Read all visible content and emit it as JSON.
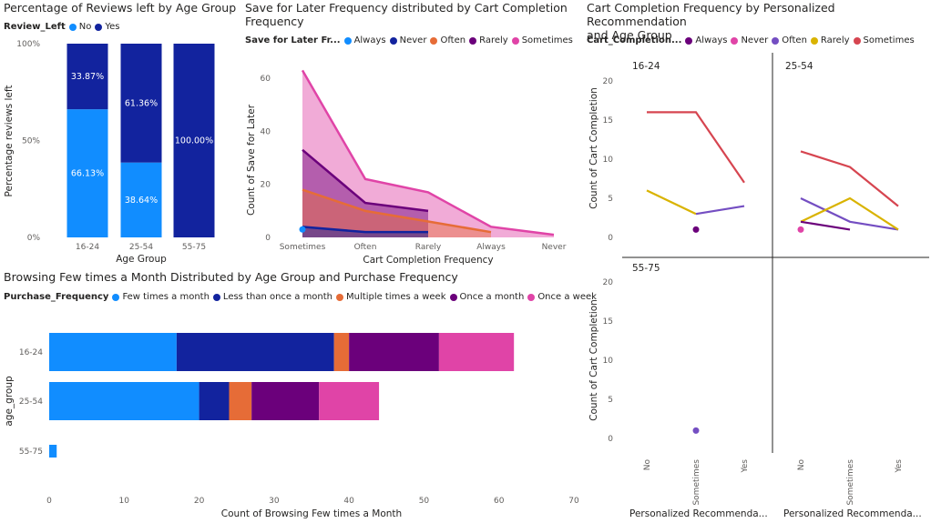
{
  "colors": {
    "c_lightblue": "#118DFF",
    "c_navy": "#12239E",
    "c_orange": "#E66C37",
    "c_purple": "#6B007B",
    "c_pink": "#E044A7",
    "c_lavender": "#744EC2",
    "c_gold": "#D9B300",
    "c_red": "#D64550"
  },
  "chart_data": [
    {
      "id": "reviews",
      "type": "bar",
      "title": "Percentage of Reviews left by Age Group",
      "legend_title": "Review_Left",
      "xlabel": "Age Group",
      "ylabel": "Percentage reviews left",
      "categories": [
        "16-24",
        "25-54",
        "55-75"
      ],
      "yticks": [
        "0%",
        "50%",
        "100%"
      ],
      "ylim": [
        0,
        100
      ],
      "stacked": "100%",
      "series": [
        {
          "name": "No",
          "color": "#118DFF",
          "values": [
            66.13,
            38.64,
            0
          ],
          "labels": [
            "66.13%",
            "38.64%",
            ""
          ]
        },
        {
          "name": "Yes",
          "color": "#12239E",
          "values": [
            33.87,
            61.36,
            100
          ],
          "labels": [
            "33.87%",
            "61.36%",
            "100.00%"
          ]
        }
      ]
    },
    {
      "id": "saveforlater",
      "type": "area",
      "title": "Save for Later Frequency distributed by Cart Completion\nFrequency",
      "legend_title": "Save for Later Fr...",
      "xlabel": "Cart Completion Frequency",
      "ylabel": "Count of Save for Later",
      "categories": [
        "Sometimes",
        "Often",
        "Rarely",
        "Always",
        "Never"
      ],
      "yticks": [
        "0",
        "20",
        "40",
        "60"
      ],
      "ylim": [
        0,
        70
      ],
      "series": [
        {
          "name": "Always",
          "color": "#118DFF",
          "values": [
            3,
            null,
            null,
            null,
            null
          ]
        },
        {
          "name": "Never",
          "color": "#12239E",
          "values": [
            4,
            2,
            2,
            null,
            null
          ]
        },
        {
          "name": "Often",
          "color": "#E66C37",
          "values": [
            18,
            10,
            6,
            2,
            null
          ]
        },
        {
          "name": "Rarely",
          "color": "#6B007B",
          "values": [
            33,
            13,
            10,
            null,
            null
          ]
        },
        {
          "name": "Sometimes",
          "color": "#E044A7",
          "values": [
            63,
            22,
            17,
            4,
            1
          ]
        }
      ]
    },
    {
      "id": "cartcompletion",
      "type": "line",
      "title": "Cart Completion Frequency by Personalized Recommendation\nand Age Group",
      "legend_title": "Cart_Completion...",
      "ylabel": "Count of Cart Completion",
      "xlabel": "Personalized Recommenda...",
      "categories": [
        "No",
        "Sometimes",
        "Yes"
      ],
      "yticks": [
        "0",
        "5",
        "10",
        "15",
        "20"
      ],
      "ylim": [
        0,
        20
      ],
      "legend": [
        {
          "name": "Always",
          "color": "#6B007B"
        },
        {
          "name": "Never",
          "color": "#E044A7"
        },
        {
          "name": "Often",
          "color": "#744EC2"
        },
        {
          "name": "Rarely",
          "color": "#D9B300"
        },
        {
          "name": "Sometimes",
          "color": "#D64550"
        }
      ],
      "facets": [
        {
          "name": "16-24",
          "series": [
            {
              "name": "Sometimes",
              "color": "#D64550",
              "values": [
                16,
                16,
                7
              ]
            },
            {
              "name": "Rarely",
              "color": "#D9B300",
              "values": [
                6,
                3,
                null
              ]
            },
            {
              "name": "Often",
              "color": "#744EC2",
              "values": [
                null,
                3,
                4
              ]
            },
            {
              "name": "Always",
              "color": "#6B007B",
              "values": [
                null,
                1,
                null
              ]
            }
          ]
        },
        {
          "name": "25-54",
          "series": [
            {
              "name": "Sometimes",
              "color": "#D64550",
              "values": [
                11,
                9,
                4
              ]
            },
            {
              "name": "Often",
              "color": "#744EC2",
              "values": [
                5,
                2,
                1
              ]
            },
            {
              "name": "Rarely",
              "color": "#D9B300",
              "values": [
                2,
                5,
                1
              ]
            },
            {
              "name": "Always",
              "color": "#6B007B",
              "values": [
                2,
                1,
                null
              ]
            },
            {
              "name": "Never",
              "color": "#E044A7",
              "values": [
                1,
                null,
                null
              ]
            }
          ]
        },
        {
          "name": "55-75",
          "series": [
            {
              "name": "Often",
              "color": "#744EC2",
              "values": [
                null,
                1,
                null
              ]
            }
          ]
        }
      ]
    },
    {
      "id": "browsing",
      "type": "bar",
      "orientation": "horizontal",
      "stacked": true,
      "title": "Browsing Few times a Month Distributed by Age Group and Purchase Frequency",
      "legend_title": "Purchase_Frequency",
      "xlabel": "Count of Browsing Few times a Month",
      "ylabel": "age_group",
      "categories": [
        "16-24",
        "25-54",
        "55-75"
      ],
      "xticks": [
        "0",
        "10",
        "20",
        "30",
        "40",
        "50",
        "60",
        "70"
      ],
      "xlim": [
        0,
        70
      ],
      "series": [
        {
          "name": "Few times a month",
          "color": "#118DFF",
          "values": [
            17,
            20,
            1
          ]
        },
        {
          "name": "Less than once a month",
          "color": "#12239E",
          "values": [
            21,
            4,
            0
          ]
        },
        {
          "name": "Multiple times a week",
          "color": "#E66C37",
          "values": [
            2,
            3,
            0
          ]
        },
        {
          "name": "Once a month",
          "color": "#6B007B",
          "values": [
            12,
            9,
            0
          ]
        },
        {
          "name": "Once a week",
          "color": "#E044A7",
          "values": [
            10,
            8,
            0
          ]
        }
      ]
    }
  ]
}
